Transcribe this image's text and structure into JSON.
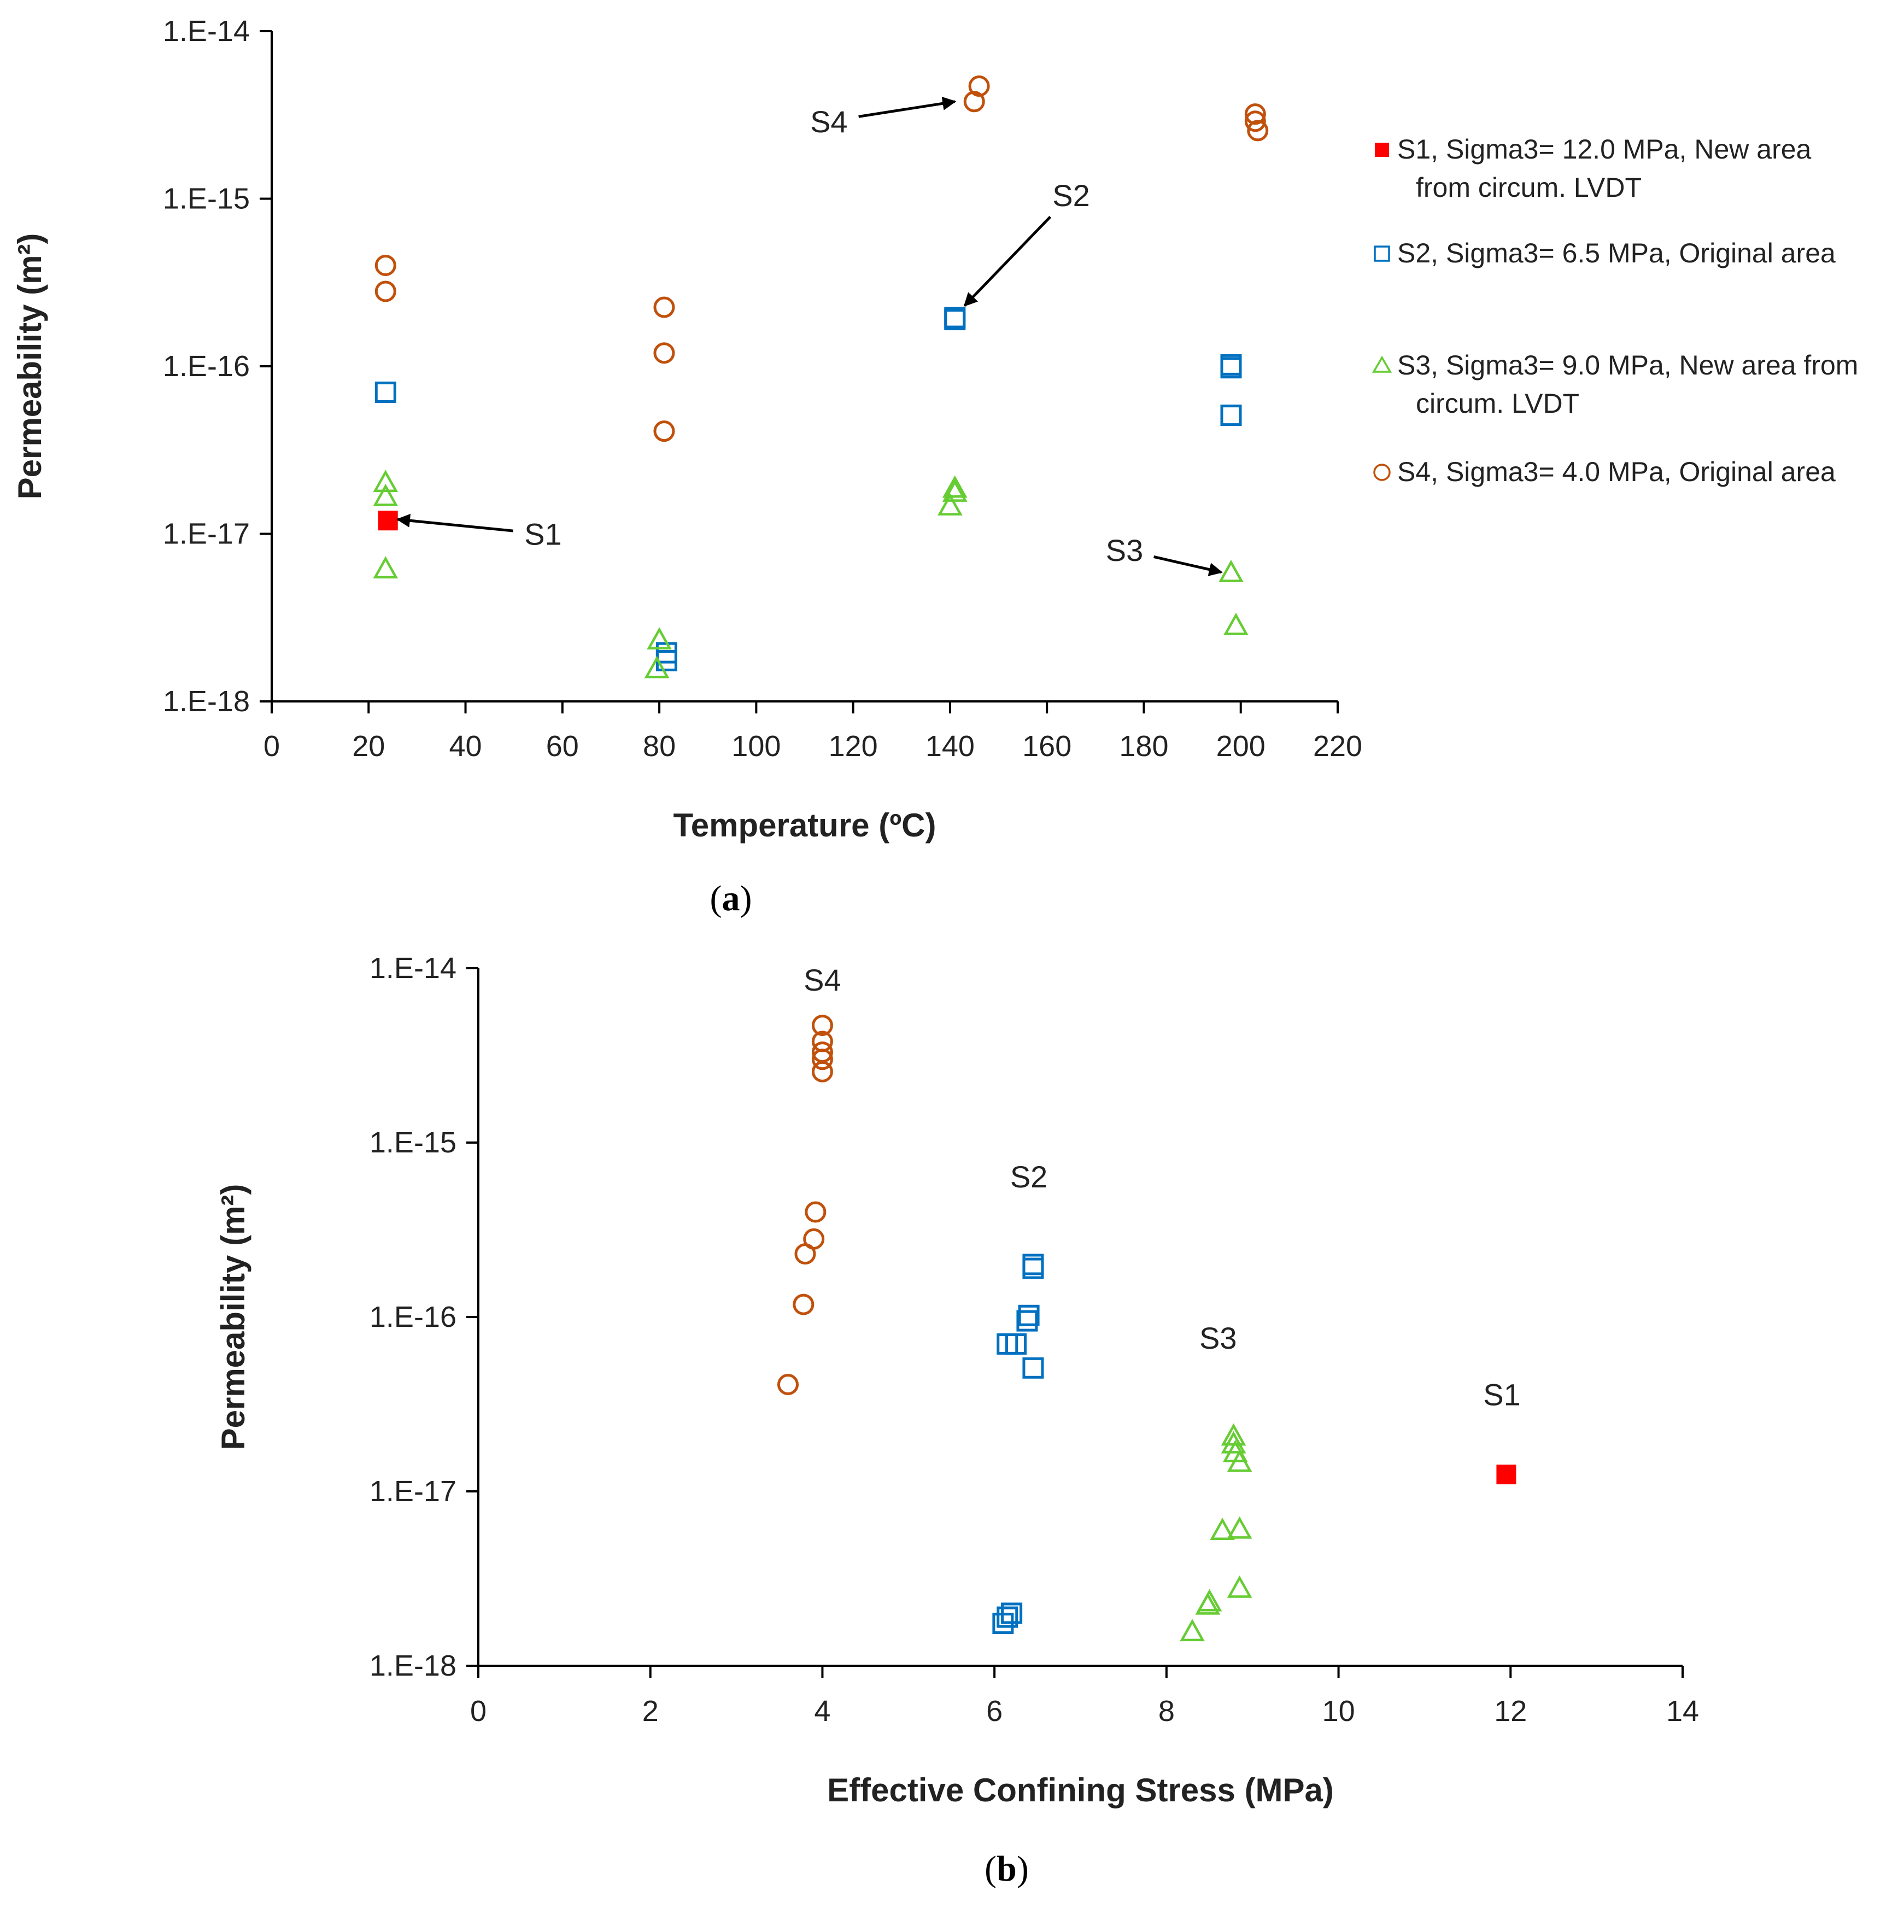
{
  "colors": {
    "S1": "#ff0000",
    "S2": "#0070c0",
    "S3": "#66cc33",
    "S4": "#c0500a",
    "axis": "#000000",
    "text": "#222222"
  },
  "chart_data": [
    {
      "type": "scatter",
      "panel": "(a)",
      "caption": {
        "open": "(",
        "letter": "a",
        "close": ")"
      },
      "xlabel": "Temperature (ºC)",
      "ylabel": "Permeability (m²)",
      "xlim": [
        0,
        220
      ],
      "ylim": [
        1e-18,
        1e-14
      ],
      "yscale": "log",
      "xticks": [
        0,
        20,
        40,
        60,
        80,
        100,
        120,
        140,
        160,
        180,
        200,
        220
      ],
      "yticks": [
        {
          "value": 1e-18,
          "label": "1.E-18"
        },
        {
          "value": 1e-17,
          "label": "1.E-17"
        },
        {
          "value": 1e-16,
          "label": "1.E-16"
        },
        {
          "value": 1e-15,
          "label": "1.E-15"
        },
        {
          "value": 1e-14,
          "label": "1.E-14"
        }
      ],
      "grid": false,
      "legend_position": "right",
      "series": [
        {
          "id": "S1",
          "name": "S1, Sigma3= 12.0 MPa, New area from circum. LVDT",
          "legend_lines": [
            "S1, Sigma3= 12.0 MPa, New area",
            "from circum. LVDT"
          ],
          "marker": "filled-square",
          "points": [
            [
              24,
              1.2e-17
            ]
          ]
        },
        {
          "id": "S2",
          "name": "S2, Sigma3= 6.5 MPa, Original area",
          "legend_lines": [
            "S2, Sigma3= 6.5 MPa, Original area"
          ],
          "marker": "square",
          "points": [
            [
              23.5,
              7e-17
            ],
            [
              81.5,
              1.95e-18
            ],
            [
              81.5,
              1.75e-18
            ],
            [
              141,
              1.95e-16
            ],
            [
              141,
              1.9e-16
            ],
            [
              198,
              1.02e-16
            ],
            [
              198,
              9.8e-17
            ],
            [
              198,
              5.1e-17
            ]
          ]
        },
        {
          "id": "S3",
          "name": "S3, Sigma3= 9.0 MPa, New area from circum. LVDT",
          "legend_lines": [
            "S3, Sigma3= 9.0 MPa, New area from",
            "circum. LVDT"
          ],
          "marker": "triangle",
          "points": [
            [
              23.5,
              2e-17
            ],
            [
              23.5,
              1.65e-17
            ],
            [
              23.5,
              6.1e-18
            ],
            [
              80,
              2.3e-18
            ],
            [
              79.5,
              1.55e-18
            ],
            [
              141,
              1.85e-17
            ],
            [
              141,
              1.75e-17
            ],
            [
              140,
              1.45e-17
            ],
            [
              198,
              5.8e-18
            ],
            [
              199,
              2.8e-18
            ]
          ]
        },
        {
          "id": "S4",
          "name": "S4, Sigma3= 4.0 MPa, Original area",
          "legend_lines": [
            "S4, Sigma3= 4.0 MPa, Original area"
          ],
          "marker": "circle",
          "points": [
            [
              23.5,
              4e-16
            ],
            [
              23.5,
              2.8e-16
            ],
            [
              81,
              2.25e-16
            ],
            [
              81,
              1.2e-16
            ],
            [
              81,
              4.1e-17
            ],
            [
              146,
              4.7e-15
            ],
            [
              145,
              3.8e-15
            ],
            [
              203,
              3.2e-15
            ],
            [
              203,
              2.9e-15
            ],
            [
              203.5,
              2.55e-15
            ]
          ]
        }
      ],
      "annotations": [
        {
          "text": "S1",
          "text_at": [
            56,
            1e-17
          ],
          "arrow_to": [
            26,
            1.22e-17
          ]
        },
        {
          "text": "S2",
          "text_at": [
            165,
            1.05e-15
          ],
          "arrow_to": [
            143,
            2.3e-16
          ]
        },
        {
          "text": "S3",
          "text_at": [
            176,
            8e-18
          ],
          "arrow_to": [
            196,
            5.9e-18
          ]
        },
        {
          "text": "S4",
          "text_at": [
            115,
            2.9e-15
          ],
          "arrow_to": [
            141,
            3.8e-15
          ]
        }
      ]
    },
    {
      "type": "scatter",
      "panel": "(b)",
      "caption": {
        "open": "(",
        "letter": "b",
        "close": ")"
      },
      "xlabel": "Effective Confining Stress (MPa)",
      "ylabel": "Permeability (m²)",
      "xlim": [
        0,
        14
      ],
      "ylim": [
        1e-18,
        1e-14
      ],
      "yscale": "log",
      "xticks": [
        0,
        2,
        4,
        6,
        8,
        10,
        12,
        14
      ],
      "yticks": [
        {
          "value": 1e-18,
          "label": "1.E-18"
        },
        {
          "value": 1e-17,
          "label": "1.E-17"
        },
        {
          "value": 1e-16,
          "label": "1.E-16"
        },
        {
          "value": 1e-15,
          "label": "1.E-15"
        },
        {
          "value": 1e-14,
          "label": "1.E-14"
        }
      ],
      "grid": false,
      "legend_position": "none",
      "series": [
        {
          "id": "S1",
          "marker": "filled-square",
          "points": [
            [
              11.95,
              1.25e-17
            ]
          ]
        },
        {
          "id": "S2",
          "marker": "square",
          "points": [
            [
              6.45,
              2e-16
            ],
            [
              6.45,
              1.9e-16
            ],
            [
              6.4,
              1.02e-16
            ],
            [
              6.38,
              9.5e-17
            ],
            [
              6.15,
              7e-17
            ],
            [
              6.25,
              7e-17
            ],
            [
              6.45,
              5.1e-17
            ],
            [
              6.2,
              2e-18
            ],
            [
              6.15,
              1.9e-18
            ],
            [
              6.1,
              1.75e-18
            ]
          ]
        },
        {
          "id": "S3",
          "marker": "triangle",
          "points": [
            [
              8.78,
              2.05e-17
            ],
            [
              8.78,
              1.85e-17
            ],
            [
              8.8,
              1.65e-17
            ],
            [
              8.85,
              1.45e-17
            ],
            [
              8.65,
              5.9e-18
            ],
            [
              8.85,
              6e-18
            ],
            [
              8.85,
              2.75e-18
            ],
            [
              8.5,
              2.3e-18
            ],
            [
              8.48,
              2.2e-18
            ],
            [
              8.3,
              1.55e-18
            ]
          ]
        },
        {
          "id": "S4",
          "marker": "circle",
          "points": [
            [
              4.0,
              4.7e-15
            ],
            [
              4.0,
              3.8e-15
            ],
            [
              4.0,
              3.3e-15
            ],
            [
              4.0,
              3e-15
            ],
            [
              4.0,
              2.55e-15
            ],
            [
              3.92,
              4e-16
            ],
            [
              3.9,
              2.8e-16
            ],
            [
              3.8,
              2.3e-16
            ],
            [
              3.78,
              1.18e-16
            ],
            [
              3.6,
              4.1e-17
            ]
          ]
        }
      ],
      "annotations": [
        {
          "text": "S4",
          "text_at": [
            4.0,
            8.6e-15
          ]
        },
        {
          "text": "S2",
          "text_at": [
            6.4,
            6.4e-16
          ]
        },
        {
          "text": "S3",
          "text_at": [
            8.6,
            7.6e-17
          ]
        },
        {
          "text": "S1",
          "text_at": [
            11.9,
            3.6e-17
          ]
        }
      ]
    }
  ]
}
